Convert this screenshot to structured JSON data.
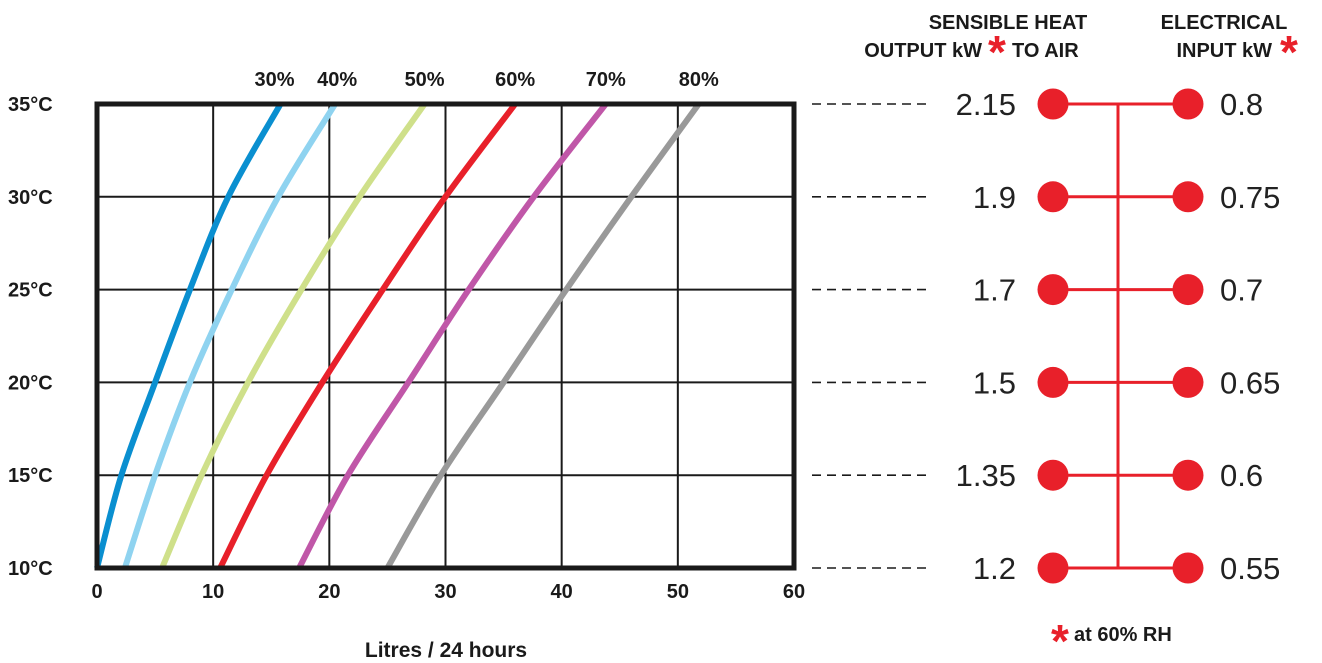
{
  "chart_data": {
    "type": "line",
    "xlabel": "Litres / 24 hours",
    "ylabel": "",
    "xlim": [
      0,
      60
    ],
    "ylim": [
      10,
      35
    ],
    "x_ticks": [
      "0",
      "10",
      "20",
      "30",
      "40",
      "50",
      "60"
    ],
    "y_ticks": [
      "10°C",
      "15°C",
      "20°C",
      "25°C",
      "30°C",
      "35°C"
    ],
    "y_tick_values": [
      10,
      15,
      20,
      25,
      30,
      35
    ],
    "grid": true,
    "series": [
      {
        "name": "30%",
        "color": "#0a8fd0",
        "points": [
          [
            0,
            10
          ],
          [
            2.1,
            15
          ],
          [
            5,
            20
          ],
          [
            8,
            25
          ],
          [
            11.3,
            30
          ],
          [
            15.8,
            35
          ]
        ]
      },
      {
        "name": "40%",
        "color": "#8fd3f0",
        "points": [
          [
            2.4,
            10
          ],
          [
            5,
            15
          ],
          [
            8,
            20
          ],
          [
            11.6,
            25
          ],
          [
            15.6,
            30
          ],
          [
            20.5,
            35
          ]
        ]
      },
      {
        "name": "50%",
        "color": "#cfe08a",
        "points": [
          [
            5.6,
            10
          ],
          [
            9,
            15
          ],
          [
            13,
            20
          ],
          [
            17.6,
            25
          ],
          [
            22.6,
            30
          ],
          [
            28.2,
            35
          ]
        ]
      },
      {
        "name": "60%",
        "color": "#e8202a",
        "points": [
          [
            10.6,
            10
          ],
          [
            14.6,
            15
          ],
          [
            19.4,
            20
          ],
          [
            24.6,
            25
          ],
          [
            30,
            30
          ],
          [
            36,
            35
          ]
        ]
      },
      {
        "name": "70%",
        "color": "#c057a8",
        "points": [
          [
            17.4,
            10
          ],
          [
            21.6,
            15
          ],
          [
            26.8,
            20
          ],
          [
            32,
            25
          ],
          [
            37.6,
            30
          ],
          [
            43.8,
            35
          ]
        ]
      },
      {
        "name": "80%",
        "color": "#999999",
        "points": [
          [
            25,
            10
          ],
          [
            29.6,
            15
          ],
          [
            35,
            20
          ],
          [
            40.4,
            25
          ],
          [
            46,
            30
          ],
          [
            51.8,
            35
          ]
        ]
      }
    ]
  },
  "side_table": {
    "sensible_header_line1": "SENSIBLE HEAT",
    "sensible_header_line2_a": "OUTPUT kW",
    "sensible_header_line2_b": "TO AIR",
    "electrical_header_line1": "ELECTRICAL",
    "electrical_header_line2": "INPUT kW",
    "asterisk": "*",
    "footnote": "at 60% RH",
    "marker_color": "#e8202a",
    "sensible_values": [
      "2.15",
      "1.9",
      "1.7",
      "1.5",
      "1.35",
      "1.2"
    ],
    "electrical_values": [
      "0.8",
      "0.75",
      "0.7",
      "0.65",
      "0.6",
      "0.55"
    ]
  }
}
